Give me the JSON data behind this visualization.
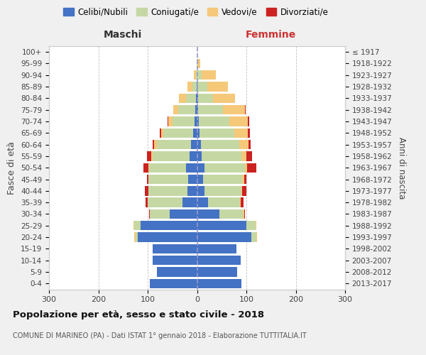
{
  "age_groups": [
    "0-4",
    "5-9",
    "10-14",
    "15-19",
    "20-24",
    "25-29",
    "30-34",
    "35-39",
    "40-44",
    "45-49",
    "50-54",
    "55-59",
    "60-64",
    "65-69",
    "70-74",
    "75-79",
    "80-84",
    "85-89",
    "90-94",
    "95-99",
    "100+"
  ],
  "birth_years": [
    "2013-2017",
    "2008-2012",
    "2003-2007",
    "1998-2002",
    "1993-1997",
    "1988-1992",
    "1983-1987",
    "1978-1982",
    "1973-1977",
    "1968-1972",
    "1963-1967",
    "1958-1962",
    "1953-1957",
    "1948-1952",
    "1943-1947",
    "1938-1942",
    "1933-1937",
    "1928-1932",
    "1923-1927",
    "1918-1922",
    "≤ 1917"
  ],
  "colors": {
    "celibe": "#4472C4",
    "coniugato": "#C5D8A4",
    "vedovo": "#F5C87A",
    "divorziato": "#CC2222"
  },
  "males": {
    "celibe": [
      95,
      82,
      90,
      90,
      120,
      115,
      55,
      30,
      20,
      18,
      22,
      15,
      12,
      8,
      5,
      3,
      2,
      1,
      0,
      0,
      0
    ],
    "coniugato": [
      0,
      0,
      0,
      0,
      5,
      12,
      40,
      70,
      78,
      80,
      75,
      75,
      70,
      60,
      45,
      35,
      20,
      8,
      2,
      0,
      0
    ],
    "vedovo": [
      0,
      0,
      0,
      0,
      2,
      2,
      0,
      0,
      0,
      0,
      2,
      3,
      5,
      5,
      8,
      10,
      15,
      10,
      5,
      1,
      0
    ],
    "divorziato": [
      0,
      0,
      0,
      0,
      0,
      0,
      2,
      4,
      8,
      4,
      10,
      8,
      3,
      3,
      2,
      0,
      0,
      0,
      0,
      0,
      0
    ]
  },
  "females": {
    "nubile": [
      90,
      82,
      88,
      80,
      110,
      100,
      45,
      22,
      15,
      12,
      15,
      10,
      8,
      5,
      3,
      2,
      2,
      1,
      0,
      0,
      0
    ],
    "coniugata": [
      0,
      0,
      0,
      0,
      10,
      18,
      48,
      65,
      75,
      80,
      82,
      80,
      78,
      70,
      62,
      50,
      30,
      20,
      10,
      2,
      1
    ],
    "vedova": [
      0,
      0,
      0,
      0,
      2,
      2,
      2,
      2,
      2,
      3,
      5,
      10,
      18,
      28,
      38,
      45,
      45,
      42,
      28,
      4,
      0
    ],
    "divorziata": [
      0,
      0,
      0,
      0,
      0,
      0,
      2,
      5,
      8,
      5,
      18,
      12,
      5,
      4,
      3,
      2,
      0,
      0,
      0,
      0,
      0
    ]
  },
  "xlim": 300,
  "title": "Popolazione per età, sesso e stato civile - 2018",
  "subtitle": "COMUNE DI MARINEO (PA) - Dati ISTAT 1° gennaio 2018 - Elaborazione TUTTITALIA.IT",
  "xlabel_left": "Maschi",
  "xlabel_right": "Femmine",
  "ylabel": "Fasce di età",
  "ylabel_right": "Anni di nascita",
  "legend_labels": [
    "Celibi/Nubili",
    "Coniugati/e",
    "Vedovi/e",
    "Divorziati/e"
  ],
  "bg_color": "#f0f0f0",
  "plot_bg": "#ffffff",
  "xticks": [
    -300,
    -200,
    -100,
    0,
    100,
    200,
    300
  ]
}
